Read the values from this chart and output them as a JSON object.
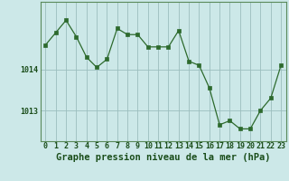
{
  "x": [
    0,
    1,
    2,
    3,
    4,
    5,
    6,
    7,
    8,
    9,
    10,
    11,
    12,
    13,
    14,
    15,
    16,
    17,
    18,
    19,
    20,
    21,
    22,
    23
  ],
  "y": [
    1014.6,
    1014.9,
    1015.2,
    1014.8,
    1014.3,
    1014.05,
    1014.25,
    1015.0,
    1014.85,
    1014.85,
    1014.55,
    1014.55,
    1014.55,
    1014.95,
    1014.2,
    1014.1,
    1013.55,
    1012.65,
    1012.75,
    1012.55,
    1012.55,
    1013.0,
    1013.3,
    1014.1
  ],
  "line_color": "#2d6a2d",
  "marker_color": "#2d6a2d",
  "bg_color": "#cce8e8",
  "grid_color_major": "#9bbebe",
  "grid_color_minor": "#b8d8d8",
  "ylabel_ticks": [
    1013,
    1014
  ],
  "xlabel": "Graphe pression niveau de la mer (hPa)",
  "xlim": [
    -0.5,
    23.5
  ],
  "ylim": [
    1012.25,
    1015.65
  ],
  "xlabel_fontsize": 7.5,
  "tick_fontsize": 6.0,
  "label_color": "#1a4d1a",
  "spine_color": "#5a8a5a"
}
